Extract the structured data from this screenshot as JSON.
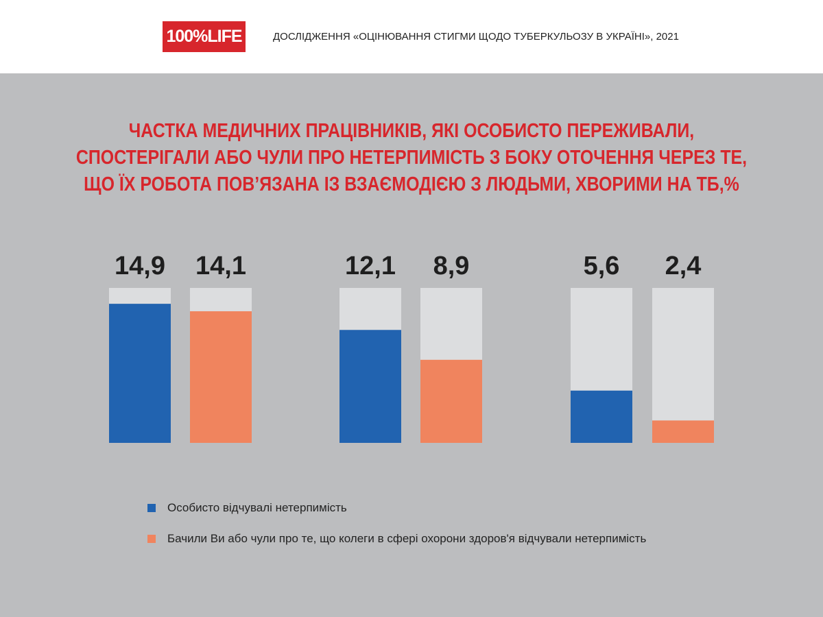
{
  "header": {
    "logo_text": "100%LIFE",
    "study_title": "ДОСЛІДЖЕННЯ «ОЦІНЮВАННЯ СТИГМИ ЩОДО ТУБЕРКУЛЬОЗУ В УКРАЇНІ», 2021"
  },
  "colors": {
    "accent_red": "#d7262c",
    "series_blue": "#2163b0",
    "series_orange": "#f0845e",
    "bar_track": "#dcdddf",
    "background": "#bcbdbf"
  },
  "chart_data": {
    "type": "bar",
    "title_lines": [
      "ЧАСТКА МЕДИЧНИХ ПРАЦІВНИКІВ, ЯКІ ОСОБИСТО ПЕРЕЖИВАЛИ,",
      "СПОСТЕРІГАЛИ АБО ЧУЛИ ПРО НЕТЕРПИМІСТЬ З БОКУ ОТОЧЕННЯ ЧЕРЕЗ ТЕ,",
      "ЩО ЇХ РОБОТА ПОВ’ЯЗАНА ІЗ ВЗАЄМОДІЄЮ З ЛЮДЬМИ, ХВОРИМИ НА ТБ,%"
    ],
    "ylim": [
      0,
      16.6
    ],
    "groups": [
      {
        "bars": [
          {
            "series": 0,
            "value": 14.9,
            "label": "14,9"
          },
          {
            "series": 1,
            "value": 14.1,
            "label": "14,1"
          }
        ]
      },
      {
        "bars": [
          {
            "series": 0,
            "value": 12.1,
            "label": "12,1"
          },
          {
            "series": 1,
            "value": 8.9,
            "label": "8,9"
          }
        ]
      },
      {
        "bars": [
          {
            "series": 0,
            "value": 5.6,
            "label": "5,6"
          },
          {
            "series": 1,
            "value": 2.4,
            "label": "2,4"
          }
        ]
      }
    ],
    "series": [
      {
        "name": "Особисто відчувалі нетерпимість",
        "color": "#2163b0"
      },
      {
        "name": "Бачили Ви або чули про те, що колеги в сфері охорони здоров'я відчували нетерпимість",
        "color": "#f0845e"
      }
    ],
    "legend_position": "bottom-left"
  }
}
